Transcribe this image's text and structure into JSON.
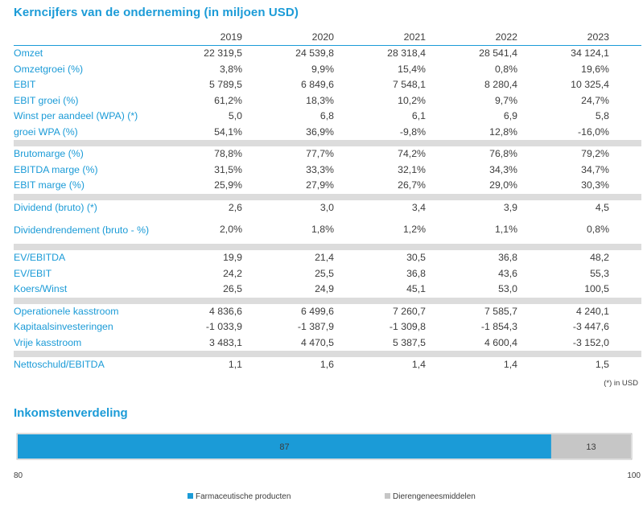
{
  "title": "Kerncijfers van de onderneming (in miljoen USD)",
  "table": {
    "years": [
      "2019",
      "2020",
      "2021",
      "2022",
      "2023"
    ],
    "groups": [
      [
        {
          "label": "Omzet",
          "values": [
            "22 319,5",
            "24 539,8",
            "28 318,4",
            "28 541,4",
            "34 124,1"
          ]
        },
        {
          "label": "Omzetgroei (%)",
          "values": [
            "3,8%",
            "9,9%",
            "15,4%",
            "0,8%",
            "19,6%"
          ]
        },
        {
          "label": "EBIT",
          "values": [
            "5 789,5",
            "6 849,6",
            "7 548,1",
            "8 280,4",
            "10 325,4"
          ]
        },
        {
          "label": "EBIT groei (%)",
          "values": [
            "61,2%",
            "18,3%",
            "10,2%",
            "9,7%",
            "24,7%"
          ]
        },
        {
          "label": "Winst per aandeel (WPA) (*)",
          "values": [
            "5,0",
            "6,8",
            "6,1",
            "6,9",
            "5,8"
          ]
        },
        {
          "label": "groei WPA (%)",
          "values": [
            "54,1%",
            "36,9%",
            "-9,8%",
            "12,8%",
            "-16,0%"
          ]
        }
      ],
      [
        {
          "label": "Brutomarge (%)",
          "values": [
            "78,8%",
            "77,7%",
            "74,2%",
            "76,8%",
            "79,2%"
          ]
        },
        {
          "label": "EBITDA marge (%)",
          "values": [
            "31,5%",
            "33,3%",
            "32,1%",
            "34,3%",
            "34,7%"
          ]
        },
        {
          "label": "EBIT marge (%)",
          "values": [
            "25,9%",
            "27,9%",
            "26,7%",
            "29,0%",
            "30,3%"
          ]
        }
      ],
      [
        {
          "label": "Dividend (bruto) (*)",
          "values": [
            "2,6",
            "3,0",
            "3,4",
            "3,9",
            "4,5"
          ]
        },
        {
          "label": "Dividendrendement (bruto - %)",
          "values": [
            "2,0%",
            "1,8%",
            "1,2%",
            "1,1%",
            "0,8%"
          ],
          "tall": true
        }
      ],
      [
        {
          "label": "EV/EBITDA",
          "values": [
            "19,9",
            "21,4",
            "30,5",
            "36,8",
            "48,2"
          ]
        },
        {
          "label": "EV/EBIT",
          "values": [
            "24,2",
            "25,5",
            "36,8",
            "43,6",
            "55,3"
          ]
        },
        {
          "label": "Koers/Winst",
          "values": [
            "26,5",
            "24,9",
            "45,1",
            "53,0",
            "100,5"
          ]
        }
      ],
      [
        {
          "label": "Operationele kasstroom",
          "values": [
            "4 836,6",
            "6 499,6",
            "7 260,7",
            "7 585,7",
            "4 240,1"
          ]
        },
        {
          "label": "Kapitaalsinvesteringen",
          "values": [
            "-1 033,9",
            "-1 387,9",
            "-1 309,8",
            "-1 854,3",
            "-3 447,6"
          ]
        },
        {
          "label": "Vrije kasstroom",
          "values": [
            "3 483,1",
            "4 470,5",
            "5 387,5",
            "4 600,4",
            "-3 152,0"
          ]
        }
      ],
      [
        {
          "label": "Nettoschuld/EBITDA",
          "values": [
            "1,1",
            "1,6",
            "1,4",
            "1,4",
            "1,5"
          ]
        }
      ]
    ],
    "footnote": "(*) in USD"
  },
  "income_section_title": "Inkomstenverdeling",
  "chart_data": {
    "type": "bar",
    "orientation": "horizontal-stacked",
    "series": [
      {
        "name": "Farmaceutische producten",
        "value": 87,
        "label": "87",
        "color": "#1b9bd7"
      },
      {
        "name": "Dierengeneesmiddelen",
        "value": 13,
        "label": "13",
        "color": "#c6c6c6"
      }
    ],
    "xlim": [
      80,
      100
    ],
    "tick_labels": [
      "80",
      "100"
    ],
    "legend_position": "bottom",
    "grid": false
  },
  "colors": {
    "accent": "#1b9bd7",
    "text": "#3c3c3c",
    "separator": "#dcdcdc",
    "secondary_bar": "#c6c6c6"
  }
}
